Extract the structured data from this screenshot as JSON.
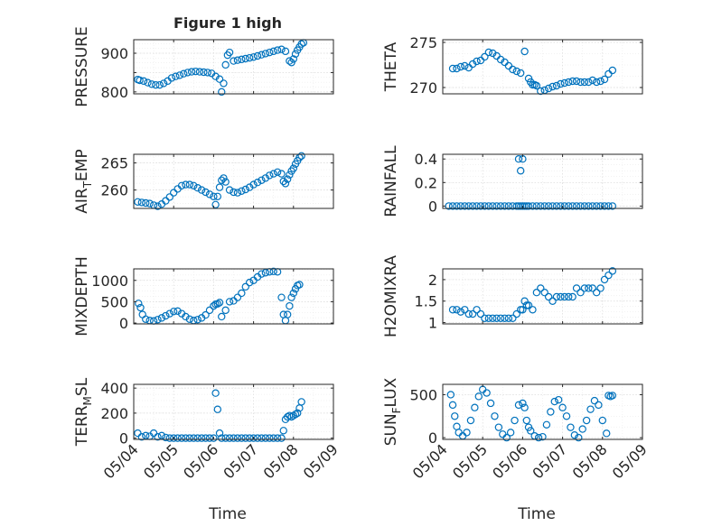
{
  "figure": {
    "title": "Figure 1 high",
    "marker_color": "#0072bd",
    "xlabel": "Time",
    "x_ticks": [
      "05/04",
      "05/05",
      "05/06",
      "05/07",
      "05/08",
      "05/09"
    ]
  },
  "chart_data": [
    {
      "type": "scatter",
      "ylabel": "PRESSURE",
      "ylim": [
        795,
        935
      ],
      "y_ticks": [
        800,
        850,
        900
      ],
      "y_tick_labels": [
        "800",
        "",
        "900"
      ],
      "xlim": [
        0,
        5
      ],
      "grid": true,
      "x": [
        0.1,
        0.15,
        0.25,
        0.35,
        0.45,
        0.55,
        0.65,
        0.75,
        0.85,
        0.95,
        1.05,
        1.15,
        1.25,
        1.35,
        1.45,
        1.55,
        1.65,
        1.75,
        1.85,
        1.95,
        2.05,
        2.15,
        2.2,
        2.25,
        2.3,
        2.35,
        2.4,
        2.5,
        2.6,
        2.7,
        2.8,
        2.9,
        3.0,
        3.1,
        3.2,
        3.3,
        3.4,
        3.5,
        3.6,
        3.7,
        3.8,
        3.9,
        3.95,
        4.0,
        4.05,
        4.1,
        4.15,
        4.2,
        4.25
      ],
      "y": [
        832,
        830,
        828,
        824,
        820,
        818,
        818,
        822,
        828,
        836,
        840,
        843,
        847,
        850,
        852,
        853,
        852,
        851,
        850,
        848,
        840,
        833,
        800,
        822,
        870,
        895,
        902,
        880,
        882,
        884,
        886,
        888,
        890,
        893,
        896,
        899,
        902,
        905,
        908,
        910,
        905,
        880,
        876,
        885,
        898,
        908,
        916,
        924,
        927
      ]
    },
    {
      "type": "scatter",
      "ylabel": "THETA",
      "ylim": [
        269.3,
        275.3
      ],
      "y_ticks": [
        270,
        275
      ],
      "y_tick_labels": [
        "270",
        "275"
      ],
      "xlim": [
        0,
        5
      ],
      "grid": true,
      "x": [
        0.25,
        0.35,
        0.45,
        0.55,
        0.65,
        0.75,
        0.85,
        0.95,
        1.05,
        1.15,
        1.25,
        1.35,
        1.45,
        1.55,
        1.65,
        1.75,
        1.85,
        1.95,
        2.05,
        2.15,
        2.2,
        2.25,
        2.3,
        2.35,
        2.45,
        2.55,
        2.65,
        2.75,
        2.85,
        2.95,
        3.05,
        3.15,
        3.25,
        3.35,
        3.45,
        3.55,
        3.65,
        3.75,
        3.85,
        3.95,
        4.05,
        4.15,
        4.25
      ],
      "y": [
        272.1,
        272.1,
        272.3,
        272.4,
        272.2,
        272.6,
        272.9,
        273.0,
        273.4,
        273.9,
        273.8,
        273.5,
        273.1,
        272.8,
        272.4,
        272.0,
        271.8,
        271.6,
        274.0,
        271.0,
        270.6,
        270.3,
        270.3,
        270.2,
        269.6,
        269.7,
        269.9,
        270.1,
        270.2,
        270.4,
        270.5,
        270.6,
        270.7,
        270.7,
        270.6,
        270.6,
        270.6,
        270.8,
        270.6,
        270.7,
        270.9,
        271.5,
        271.9
      ]
    },
    {
      "type": "scatter",
      "ylabel": "AIR_TEMP",
      "ylim": [
        256.6,
        266.6
      ],
      "y_ticks": [
        260,
        265
      ],
      "y_tick_labels": [
        "260",
        "265"
      ],
      "xlim": [
        0,
        5
      ],
      "grid": true,
      "x": [
        0.1,
        0.2,
        0.3,
        0.4,
        0.5,
        0.6,
        0.7,
        0.8,
        0.9,
        1.0,
        1.1,
        1.2,
        1.3,
        1.4,
        1.5,
        1.6,
        1.7,
        1.8,
        1.9,
        2.0,
        2.05,
        2.1,
        2.15,
        2.2,
        2.25,
        2.3,
        2.4,
        2.5,
        2.6,
        2.7,
        2.8,
        2.9,
        3.0,
        3.1,
        3.2,
        3.3,
        3.4,
        3.5,
        3.6,
        3.7,
        3.75,
        3.8,
        3.85,
        3.9,
        3.95,
        4.0,
        4.05,
        4.1,
        4.15,
        4.2
      ],
      "y": [
        257.8,
        257.7,
        257.6,
        257.5,
        257.2,
        257.0,
        257.4,
        258.0,
        258.7,
        259.5,
        260.2,
        260.8,
        261.0,
        261.0,
        260.8,
        260.4,
        260.0,
        259.6,
        259.2,
        258.8,
        257.3,
        258.8,
        260.5,
        261.8,
        262.2,
        261.5,
        260.0,
        259.6,
        259.5,
        259.8,
        260.1,
        260.5,
        261.0,
        261.4,
        261.8,
        262.2,
        262.7,
        263.0,
        263.3,
        263.0,
        261.6,
        261.2,
        262.0,
        262.8,
        263.5,
        264.0,
        264.8,
        265.4,
        266.0,
        266.3
      ]
    },
    {
      "type": "scatter",
      "ylabel": "RAINFALL",
      "ylim": [
        -0.02,
        0.44
      ],
      "y_ticks": [
        0,
        0.2,
        0.4
      ],
      "y_tick_labels": [
        "0",
        "0.2",
        "0.4"
      ],
      "xlim": [
        0,
        5
      ],
      "grid": true,
      "x": [
        0.15,
        0.25,
        0.35,
        0.45,
        0.55,
        0.65,
        0.75,
        0.85,
        0.95,
        1.05,
        1.15,
        1.25,
        1.35,
        1.45,
        1.55,
        1.65,
        1.75,
        1.85,
        1.9,
        1.95,
        2.0,
        2.05,
        2.1,
        2.15,
        2.25,
        2.35,
        2.45,
        2.55,
        2.65,
        2.75,
        2.85,
        2.95,
        3.05,
        3.15,
        3.25,
        3.35,
        3.45,
        3.55,
        3.65,
        3.75,
        3.85,
        3.95,
        4.05,
        4.15,
        4.25,
        1.9,
        1.95,
        2.0
      ],
      "y": [
        0,
        0,
        0,
        0,
        0,
        0,
        0,
        0,
        0,
        0,
        0,
        0,
        0,
        0,
        0,
        0,
        0,
        0,
        0,
        0,
        0,
        0,
        0,
        0,
        0,
        0,
        0,
        0,
        0,
        0,
        0,
        0,
        0,
        0,
        0,
        0,
        0,
        0,
        0,
        0,
        0,
        0,
        0,
        0,
        0,
        0.4,
        0.3,
        0.4
      ]
    },
    {
      "type": "scatter",
      "ylabel": "MIXDEPTH",
      "ylim": [
        -20,
        1270
      ],
      "y_ticks": [
        0,
        500,
        1000
      ],
      "y_tick_labels": [
        "0",
        "500",
        "1000"
      ],
      "xlim": [
        0,
        5
      ],
      "grid": true,
      "x": [
        0.12,
        0.17,
        0.22,
        0.3,
        0.4,
        0.5,
        0.6,
        0.7,
        0.8,
        0.9,
        1.0,
        1.1,
        1.2,
        1.3,
        1.4,
        1.5,
        1.6,
        1.7,
        1.8,
        1.9,
        2.0,
        2.05,
        2.1,
        2.15,
        2.2,
        2.3,
        2.4,
        2.5,
        2.6,
        2.7,
        2.8,
        2.9,
        3.0,
        3.1,
        3.2,
        3.3,
        3.4,
        3.5,
        3.6,
        3.7,
        3.75,
        3.8,
        3.85,
        3.9,
        3.95,
        4.0,
        4.05,
        4.1,
        4.15
      ],
      "y": [
        460,
        360,
        200,
        90,
        60,
        50,
        80,
        120,
        170,
        220,
        270,
        280,
        220,
        150,
        90,
        60,
        80,
        120,
        190,
        300,
        400,
        440,
        450,
        480,
        150,
        300,
        500,
        520,
        600,
        700,
        850,
        950,
        1000,
        1080,
        1150,
        1180,
        1200,
        1210,
        1200,
        600,
        200,
        60,
        200,
        400,
        600,
        700,
        800,
        880,
        900
      ]
    },
    {
      "type": "scatter",
      "ylabel": "H2OMIXRA",
      "ylim": [
        0.97,
        2.25
      ],
      "y_ticks": [
        1,
        1.5,
        2
      ],
      "y_tick_labels": [
        "1",
        "1.5",
        "2"
      ],
      "xlim": [
        0,
        5
      ],
      "grid": true,
      "x": [
        0.25,
        0.35,
        0.45,
        0.55,
        0.65,
        0.75,
        0.85,
        0.95,
        1.05,
        1.15,
        1.25,
        1.35,
        1.45,
        1.55,
        1.65,
        1.75,
        1.85,
        1.95,
        2.0,
        2.05,
        2.1,
        2.15,
        2.25,
        2.35,
        2.45,
        2.55,
        2.65,
        2.75,
        2.85,
        2.95,
        3.05,
        3.15,
        3.25,
        3.35,
        3.45,
        3.55,
        3.65,
        3.75,
        3.85,
        3.95,
        4.05,
        4.15,
        4.25
      ],
      "y": [
        1.3,
        1.3,
        1.25,
        1.3,
        1.2,
        1.2,
        1.3,
        1.2,
        1.1,
        1.1,
        1.1,
        1.1,
        1.1,
        1.1,
        1.1,
        1.1,
        1.2,
        1.3,
        1.3,
        1.5,
        1.4,
        1.4,
        1.3,
        1.7,
        1.8,
        1.7,
        1.6,
        1.5,
        1.6,
        1.6,
        1.6,
        1.6,
        1.6,
        1.8,
        1.7,
        1.8,
        1.8,
        1.8,
        1.7,
        1.8,
        2.0,
        2.1,
        2.2
      ]
    },
    {
      "type": "scatter",
      "ylabel": "TERR_MSL",
      "ylim": [
        -10,
        430
      ],
      "y_ticks": [
        0,
        200,
        400
      ],
      "y_tick_labels": [
        "0",
        "200",
        "400"
      ],
      "xlim": [
        0,
        5
      ],
      "grid": true,
      "x": [
        0.1,
        0.2,
        0.3,
        0.4,
        0.5,
        0.6,
        0.7,
        0.8,
        0.9,
        1.0,
        1.1,
        1.2,
        1.3,
        1.4,
        1.5,
        1.6,
        1.7,
        1.8,
        1.9,
        2.0,
        2.05,
        2.1,
        2.15,
        2.2,
        2.3,
        2.4,
        2.5,
        2.6,
        2.7,
        2.8,
        2.9,
        3.0,
        3.1,
        3.2,
        3.3,
        3.4,
        3.5,
        3.6,
        3.7,
        3.75,
        3.8,
        3.85,
        3.9,
        3.95,
        4.0,
        4.05,
        4.1,
        4.15,
        4.2
      ],
      "y": [
        40,
        10,
        20,
        15,
        40,
        10,
        20,
        5,
        0,
        0,
        0,
        0,
        0,
        0,
        0,
        0,
        0,
        0,
        0,
        0,
        360,
        230,
        40,
        0,
        0,
        0,
        0,
        0,
        0,
        0,
        0,
        0,
        0,
        0,
        0,
        0,
        0,
        0,
        0,
        60,
        150,
        170,
        180,
        170,
        180,
        190,
        200,
        240,
        290
      ]
    },
    {
      "type": "scatter",
      "ylabel": "SUN_FLUX",
      "ylim": [
        -20,
        620
      ],
      "y_ticks": [
        0,
        500
      ],
      "y_tick_labels": [
        "0",
        "500"
      ],
      "xlim": [
        0,
        5
      ],
      "grid": true,
      "x": [
        0.2,
        0.25,
        0.3,
        0.35,
        0.4,
        0.5,
        0.6,
        0.7,
        0.8,
        0.9,
        1.0,
        1.1,
        1.2,
        1.3,
        1.4,
        1.5,
        1.6,
        1.7,
        1.8,
        1.9,
        2.0,
        2.05,
        2.1,
        2.15,
        2.2,
        2.3,
        2.4,
        2.5,
        2.6,
        2.7,
        2.8,
        2.9,
        3.0,
        3.1,
        3.2,
        3.3,
        3.4,
        3.5,
        3.6,
        3.7,
        3.8,
        3.9,
        4.0,
        4.1,
        4.15,
        4.2,
        4.25
      ],
      "y": [
        500,
        380,
        250,
        130,
        60,
        20,
        60,
        200,
        350,
        480,
        560,
        520,
        400,
        250,
        120,
        40,
        0,
        60,
        200,
        380,
        400,
        350,
        200,
        120,
        80,
        20,
        0,
        10,
        150,
        300,
        420,
        440,
        350,
        250,
        120,
        30,
        0,
        100,
        200,
        330,
        430,
        380,
        200,
        50,
        490,
        480,
        490
      ]
    }
  ]
}
